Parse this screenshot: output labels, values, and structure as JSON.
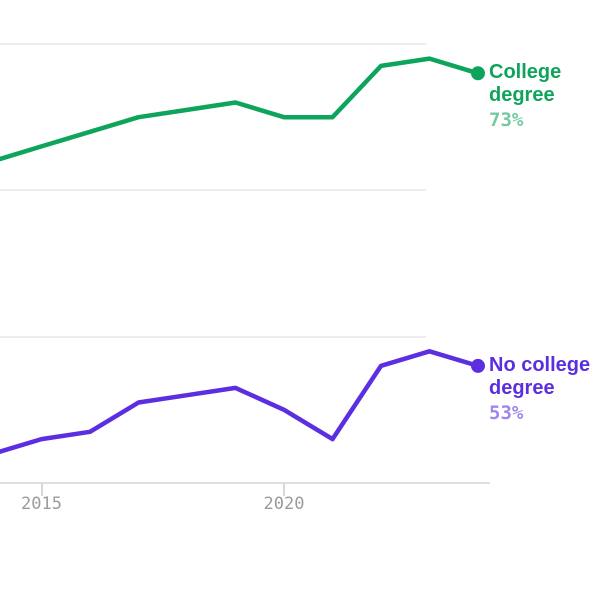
{
  "artifact": {
    "cropped_edge_text": "%"
  },
  "chart_data": {
    "type": "line",
    "x": [
      2014,
      2015,
      2016,
      2017,
      2018,
      2019,
      2020,
      2021,
      2022,
      2023,
      2024
    ],
    "series": [
      {
        "name": "College degree",
        "color": "#0fa45c",
        "values": [
          67,
          68,
          69,
          70,
          70.5,
          71,
          70,
          70,
          73.5,
          74,
          73
        ],
        "end_value_label": "73%"
      },
      {
        "name": "No college degree",
        "color": "#5b2ee1",
        "values": [
          47,
          48,
          48.5,
          50.5,
          51,
          51.5,
          50,
          48,
          53,
          54,
          53
        ],
        "end_value_label": "53%"
      }
    ],
    "xticks": [
      "2015",
      "2020"
    ],
    "ylim": [
      45,
      75
    ],
    "gridlines_at": [
      75,
      65,
      55
    ],
    "baseline_at": 45,
    "grid": true,
    "y_unit": "%",
    "legend_position": "right of line ends",
    "title": "",
    "xlabel": "",
    "ylabel": ""
  },
  "colors": {
    "gridline": "#ececea",
    "axis": "#e0dfdc",
    "tick": "#d9d8d5",
    "tick_label": "#9b9b9b"
  }
}
